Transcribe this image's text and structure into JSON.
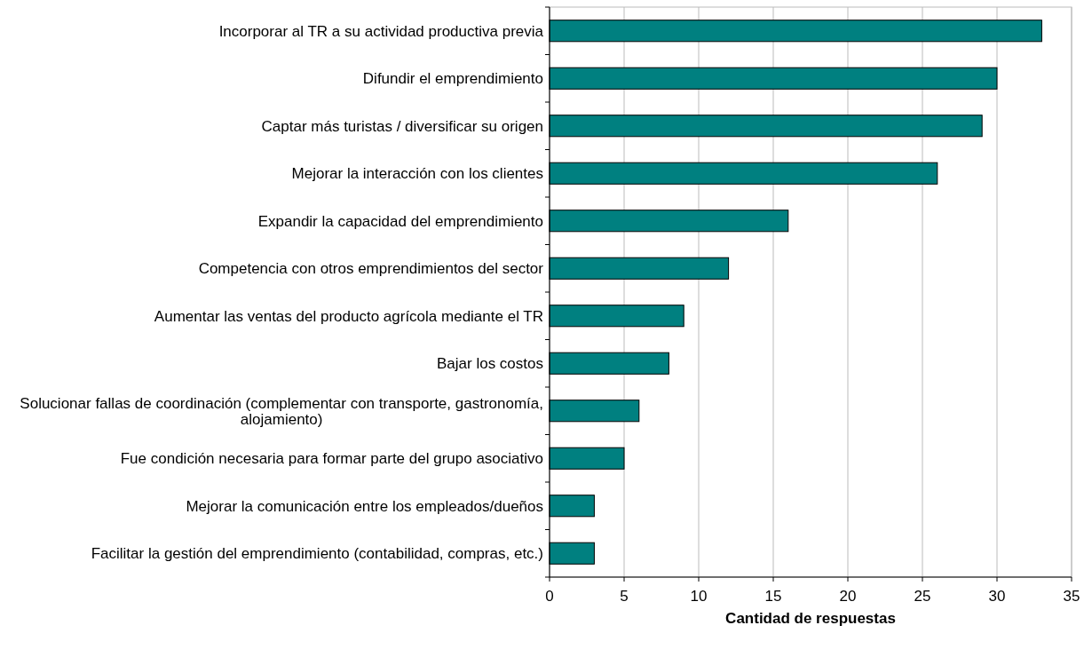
{
  "chart_data": {
    "type": "bar",
    "orientation": "horizontal",
    "xlabel": "Cantidad de respuestas",
    "categories": [
      "Incorporar al TR a su actividad productiva previa",
      "Difundir el emprendimiento",
      "Captar más turistas / diversificar su origen",
      "Mejorar la interacción con los clientes",
      "Expandir la capacidad del emprendimiento",
      "Competencia con otros emprendimientos del sector",
      "Aumentar las ventas del producto agrícola mediante el TR",
      "Bajar los costos",
      "Solucionar fallas de coordinación (complementar con transporte, gastronomía, alojamiento)",
      "Fue condición necesaria para formar parte del grupo asociativo",
      "Mejorar la comunicación entre los empleados/dueños",
      "Facilitar la gestión del emprendimiento (contabilidad, compras, etc.)"
    ],
    "values": [
      33,
      30,
      29,
      26,
      16,
      12,
      9,
      8,
      6,
      5,
      3,
      3
    ],
    "color": "#008080",
    "xlim": [
      0,
      35
    ],
    "xticks": [
      0,
      5,
      10,
      15,
      20,
      25,
      30,
      35
    ],
    "grid": "x"
  }
}
